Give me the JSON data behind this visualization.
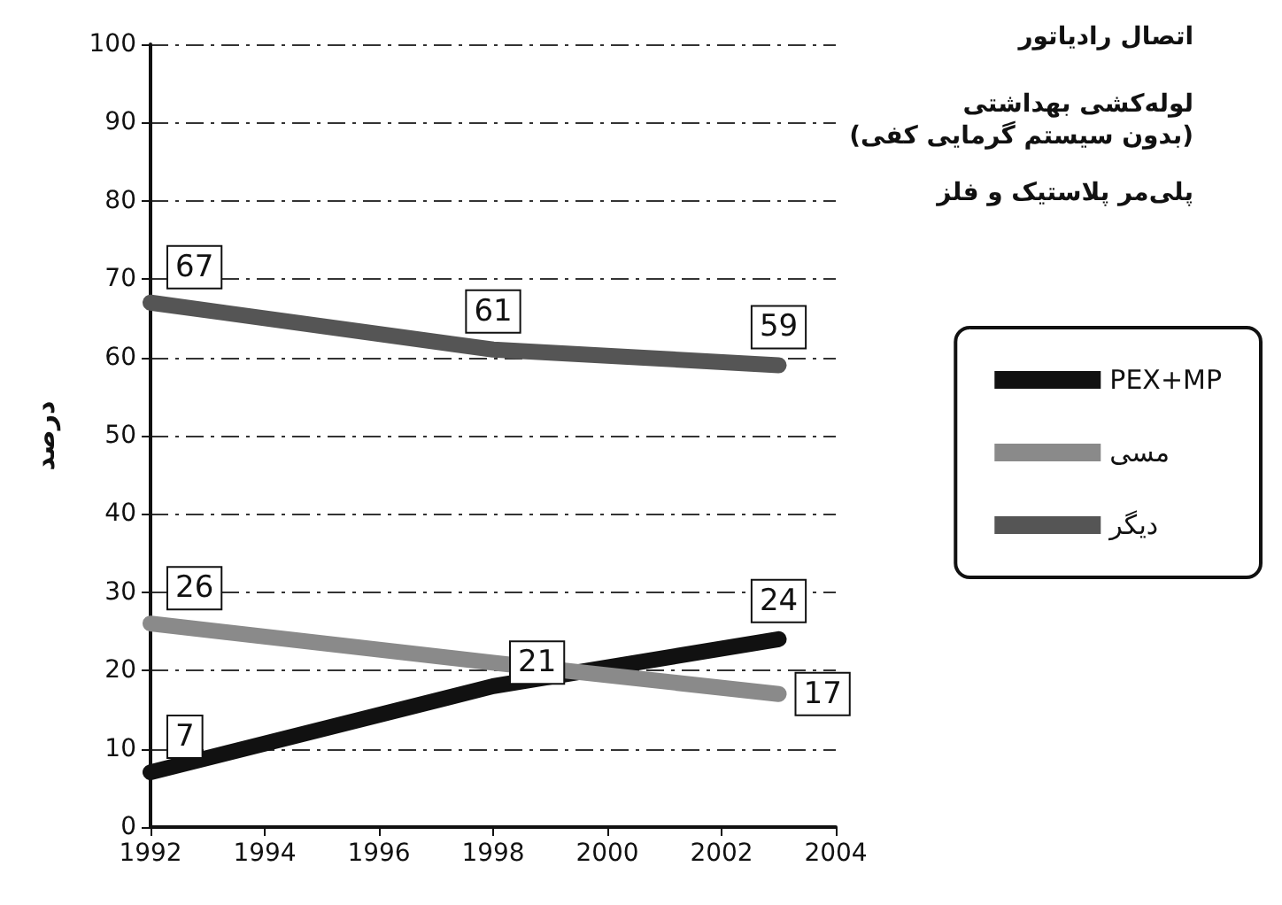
{
  "chart_data": {
    "type": "line",
    "ylabel": "درصد",
    "x": [
      1992,
      1998,
      2003
    ],
    "xlim": [
      1992,
      2004
    ],
    "xticks": [
      1992,
      1994,
      1996,
      1998,
      2000,
      2002,
      2004
    ],
    "ylim": [
      0,
      100
    ],
    "yticks": [
      0,
      10,
      20,
      30,
      40,
      50,
      60,
      70,
      80,
      90,
      100
    ],
    "grid": "y",
    "legend": "right",
    "marker": "none",
    "line_style": "solid",
    "annotations": [
      "اتصال رادیاتور",
      "لوله‌کشی بهداشتی\n(بدون سیستم گرمایی کفی)",
      "پلی‌مر پلاستیک و فلز"
    ],
    "series": [
      {
        "name": "PEX+MP",
        "color": "#111111",
        "values": [
          7,
          18,
          24
        ],
        "value_labels": [
          "7",
          null,
          "24"
        ]
      },
      {
        "name": "مسی",
        "color": "#8a8a8a",
        "values": [
          26,
          21,
          17
        ],
        "value_labels": [
          "26",
          "21",
          "17"
        ]
      },
      {
        "name": "دیگر",
        "color": "#555555",
        "values": [
          67,
          61,
          59
        ],
        "value_labels": [
          "67",
          "61",
          "59"
        ]
      }
    ]
  }
}
